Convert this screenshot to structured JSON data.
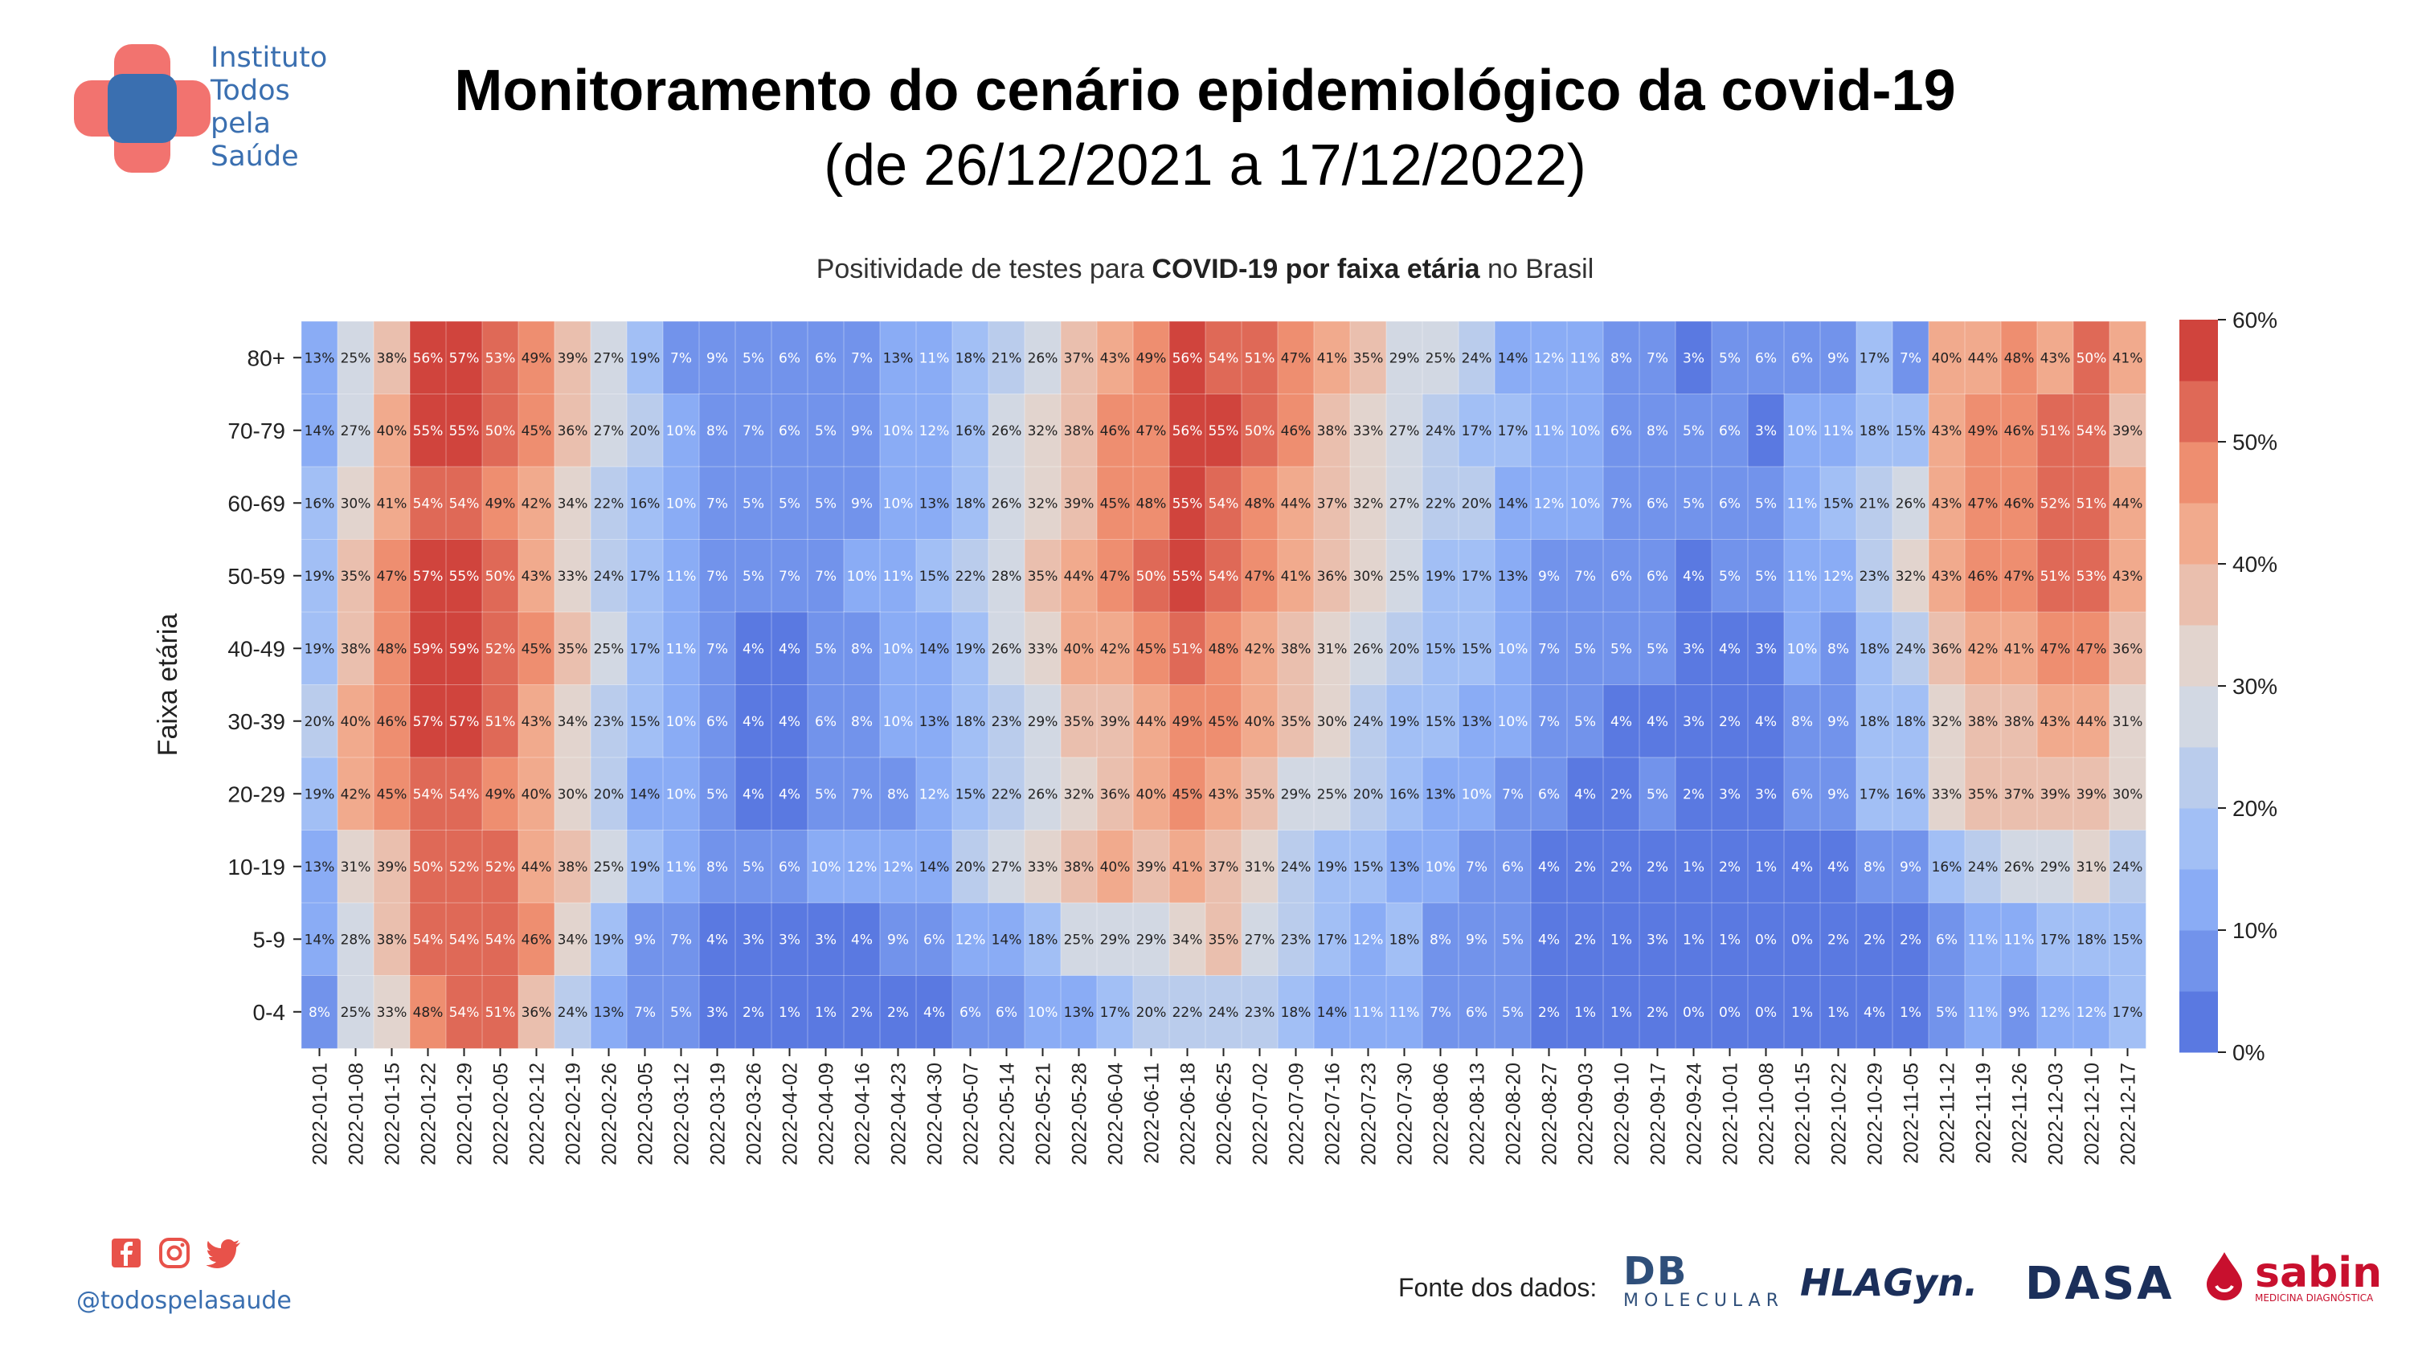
{
  "logo": {
    "lines": [
      "Instituto",
      "Todos",
      "pela",
      "Saúde"
    ]
  },
  "title": {
    "line1": "Monitoramento do cenário epidemiológico da covid-19",
    "line2": "(de 26/12/2021 a 17/12/2022)"
  },
  "subtitle": {
    "prefix": "Positividade de testes para ",
    "bold": "COVID-19 por faixa etária",
    "suffix": " no Brasil"
  },
  "footer": {
    "social_icons": [
      "facebook-icon",
      "instagram-icon",
      "twitter-icon"
    ],
    "handle": "@todospelasaude",
    "fonte_label": "Fonte dos dados:",
    "sponsors": {
      "db_big": "DB",
      "db_small": "MOLECULAR",
      "hla": "HLAGyn.",
      "dasa": "DASA",
      "sabin": "sabin",
      "sabin_tag": "MEDICINA DIAGNÓSTICA"
    }
  },
  "colors": {
    "low": "#3b4cc0",
    "mid": "#dddddd",
    "high": "#b40426"
  },
  "chart_data": {
    "type": "heatmap",
    "title": "Positividade de testes para COVID-19 por faixa etária no Brasil",
    "ylabel": "Faixa etária",
    "xlabel": "",
    "value_unit": "%",
    "colorbar": {
      "min": 0,
      "max": 60,
      "ticks": [
        "0%",
        "10%",
        "20%",
        "30%",
        "40%",
        "50%",
        "60%"
      ]
    },
    "x": [
      "2022-01-01",
      "2022-01-08",
      "2022-01-15",
      "2022-01-22",
      "2022-01-29",
      "2022-02-05",
      "2022-02-12",
      "2022-02-19",
      "2022-02-26",
      "2022-03-05",
      "2022-03-12",
      "2022-03-19",
      "2022-03-26",
      "2022-04-02",
      "2022-04-09",
      "2022-04-16",
      "2022-04-23",
      "2022-04-30",
      "2022-05-07",
      "2022-05-14",
      "2022-05-21",
      "2022-05-28",
      "2022-06-04",
      "2022-06-11",
      "2022-06-18",
      "2022-06-25",
      "2022-07-02",
      "2022-07-09",
      "2022-07-16",
      "2022-07-23",
      "2022-07-30",
      "2022-08-06",
      "2022-08-13",
      "2022-08-20",
      "2022-08-27",
      "2022-09-03",
      "2022-09-10",
      "2022-09-17",
      "2022-09-24",
      "2022-10-01",
      "2022-10-08",
      "2022-10-15",
      "2022-10-22",
      "2022-10-29",
      "2022-11-05",
      "2022-11-12",
      "2022-11-19",
      "2022-11-26",
      "2022-12-03",
      "2022-12-10",
      "2022-12-17"
    ],
    "y": [
      "80+",
      "70-79",
      "60-69",
      "50-59",
      "40-49",
      "30-39",
      "20-29",
      "10-19",
      "5-9",
      "0-4"
    ],
    "values": [
      [
        13,
        25,
        38,
        56,
        57,
        53,
        49,
        39,
        27,
        19,
        7,
        9,
        5,
        6,
        6,
        7,
        13,
        11,
        18,
        21,
        26,
        37,
        43,
        49,
        56,
        54,
        51,
        47,
        41,
        35,
        29,
        25,
        24,
        14,
        12,
        11,
        8,
        7,
        3,
        5,
        6,
        6,
        9,
        17,
        7,
        40,
        44,
        48,
        43,
        50,
        41
      ],
      [
        14,
        27,
        40,
        55,
        55,
        50,
        45,
        36,
        27,
        20,
        10,
        8,
        7,
        6,
        5,
        9,
        10,
        12,
        16,
        26,
        32,
        38,
        46,
        47,
        56,
        55,
        50,
        46,
        38,
        33,
        27,
        24,
        17,
        17,
        11,
        10,
        6,
        8,
        5,
        6,
        3,
        10,
        11,
        18,
        15,
        43,
        49,
        46,
        51,
        54,
        39
      ],
      [
        16,
        30,
        41,
        54,
        54,
        49,
        42,
        34,
        22,
        16,
        10,
        7,
        5,
        5,
        5,
        9,
        10,
        13,
        18,
        26,
        32,
        39,
        45,
        48,
        55,
        54,
        48,
        44,
        37,
        32,
        27,
        22,
        20,
        14,
        12,
        10,
        7,
        6,
        5,
        6,
        5,
        11,
        15,
        21,
        26,
        43,
        47,
        46,
        52,
        51,
        44
      ],
      [
        19,
        35,
        47,
        57,
        55,
        50,
        43,
        33,
        24,
        17,
        11,
        7,
        5,
        7,
        7,
        10,
        11,
        15,
        22,
        28,
        35,
        44,
        47,
        50,
        55,
        54,
        47,
        41,
        36,
        30,
        25,
        19,
        17,
        13,
        9,
        7,
        6,
        6,
        4,
        5,
        5,
        11,
        12,
        23,
        32,
        43,
        46,
        47,
        51,
        53,
        43
      ],
      [
        19,
        38,
        48,
        59,
        59,
        52,
        45,
        35,
        25,
        17,
        11,
        7,
        4,
        4,
        5,
        8,
        10,
        14,
        19,
        26,
        33,
        40,
        42,
        45,
        51,
        48,
        42,
        38,
        31,
        26,
        20,
        15,
        15,
        10,
        7,
        5,
        5,
        5,
        3,
        4,
        3,
        10,
        8,
        18,
        24,
        36,
        42,
        41,
        47,
        47,
        36
      ],
      [
        20,
        40,
        46,
        57,
        57,
        51,
        43,
        34,
        23,
        15,
        10,
        6,
        4,
        4,
        6,
        8,
        10,
        13,
        18,
        23,
        29,
        35,
        39,
        44,
        49,
        45,
        40,
        35,
        30,
        24,
        19,
        15,
        13,
        10,
        7,
        5,
        4,
        4,
        3,
        2,
        4,
        8,
        9,
        18,
        18,
        32,
        38,
        38,
        43,
        44,
        31
      ],
      [
        19,
        42,
        45,
        54,
        54,
        49,
        40,
        30,
        20,
        14,
        10,
        5,
        4,
        4,
        5,
        7,
        8,
        12,
        15,
        22,
        26,
        32,
        36,
        40,
        45,
        43,
        35,
        29,
        25,
        20,
        16,
        13,
        10,
        7,
        6,
        4,
        2,
        5,
        2,
        3,
        3,
        6,
        9,
        17,
        16,
        33,
        35,
        37,
        39,
        39,
        30
      ],
      [
        13,
        31,
        39,
        50,
        52,
        52,
        44,
        38,
        25,
        19,
        11,
        8,
        5,
        6,
        10,
        12,
        12,
        14,
        20,
        27,
        33,
        38,
        40,
        39,
        41,
        37,
        31,
        24,
        19,
        15,
        13,
        10,
        7,
        6,
        4,
        2,
        2,
        2,
        1,
        2,
        1,
        4,
        4,
        8,
        9,
        16,
        24,
        26,
        29,
        31,
        24
      ],
      [
        14,
        28,
        38,
        54,
        54,
        54,
        46,
        34,
        19,
        9,
        7,
        4,
        3,
        3,
        3,
        4,
        9,
        6,
        12,
        14,
        18,
        25,
        29,
        29,
        34,
        35,
        27,
        23,
        17,
        12,
        18,
        8,
        9,
        5,
        4,
        2,
        1,
        3,
        1,
        1,
        0,
        0,
        2,
        2,
        2,
        6,
        11,
        11,
        17,
        18,
        15
      ],
      [
        8,
        25,
        33,
        48,
        54,
        51,
        36,
        24,
        13,
        7,
        5,
        3,
        2,
        1,
        1,
        2,
        2,
        4,
        6,
        6,
        10,
        13,
        17,
        20,
        22,
        24,
        23,
        18,
        14,
        11,
        11,
        7,
        6,
        5,
        2,
        1,
        1,
        2,
        0,
        0,
        0,
        1,
        1,
        4,
        1,
        5,
        11,
        9,
        12,
        12,
        17
      ]
    ]
  }
}
